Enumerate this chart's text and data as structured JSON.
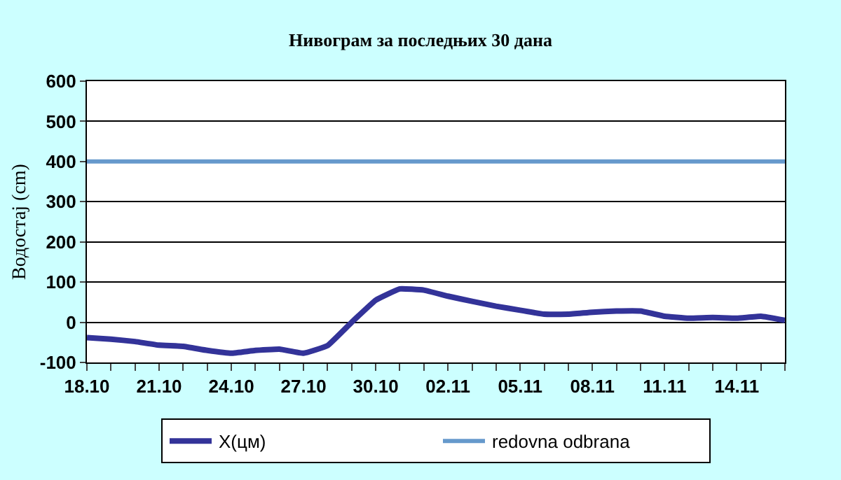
{
  "chart_data": {
    "type": "line",
    "title": "Нивограм за последњих 30 дана",
    "ylabel": "Водостај (cm)",
    "categories": [
      "18.10",
      null,
      null,
      "21.10",
      null,
      null,
      "24.10",
      null,
      null,
      "27.10",
      null,
      null,
      "30.10",
      null,
      null,
      "02.11",
      null,
      null,
      "05.11",
      null,
      null,
      "08.11",
      null,
      null,
      "11.11",
      null,
      null,
      "14.11",
      null,
      null
    ],
    "series": [
      {
        "name": "X(цм)",
        "color": "#333399",
        "values": [
          -38,
          -42,
          -48,
          -57,
          -60,
          -70,
          -77,
          -70,
          -67,
          -77,
          -58,
          0,
          55,
          83,
          80,
          65,
          52,
          40,
          30,
          20,
          20,
          25,
          28,
          28,
          15,
          10,
          12,
          10,
          15,
          5
        ]
      }
    ],
    "ref_lines": [
      {
        "axis": "y",
        "value": 400,
        "label": "redovna odbrana",
        "color": "#6699cc"
      }
    ],
    "ylim": [
      -100,
      600
    ],
    "yticks": [
      -100,
      0,
      100,
      200,
      300,
      400,
      500,
      600
    ],
    "grid": "y",
    "legend": "bottom"
  }
}
